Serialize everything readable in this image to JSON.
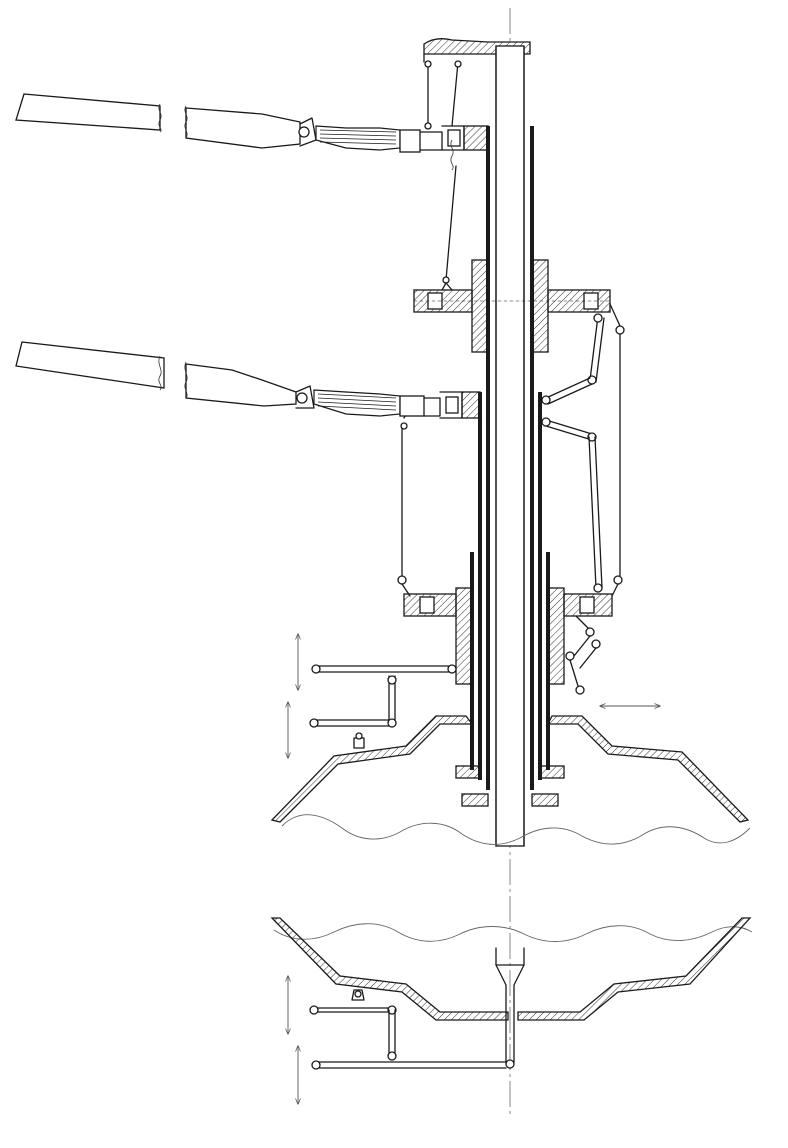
{
  "figure": {
    "type": "technical-drawing",
    "labels": [],
    "colors": {
      "line": "#1a1a1a",
      "hatch": "#1a1a1a",
      "background": "#ffffff"
    }
  }
}
